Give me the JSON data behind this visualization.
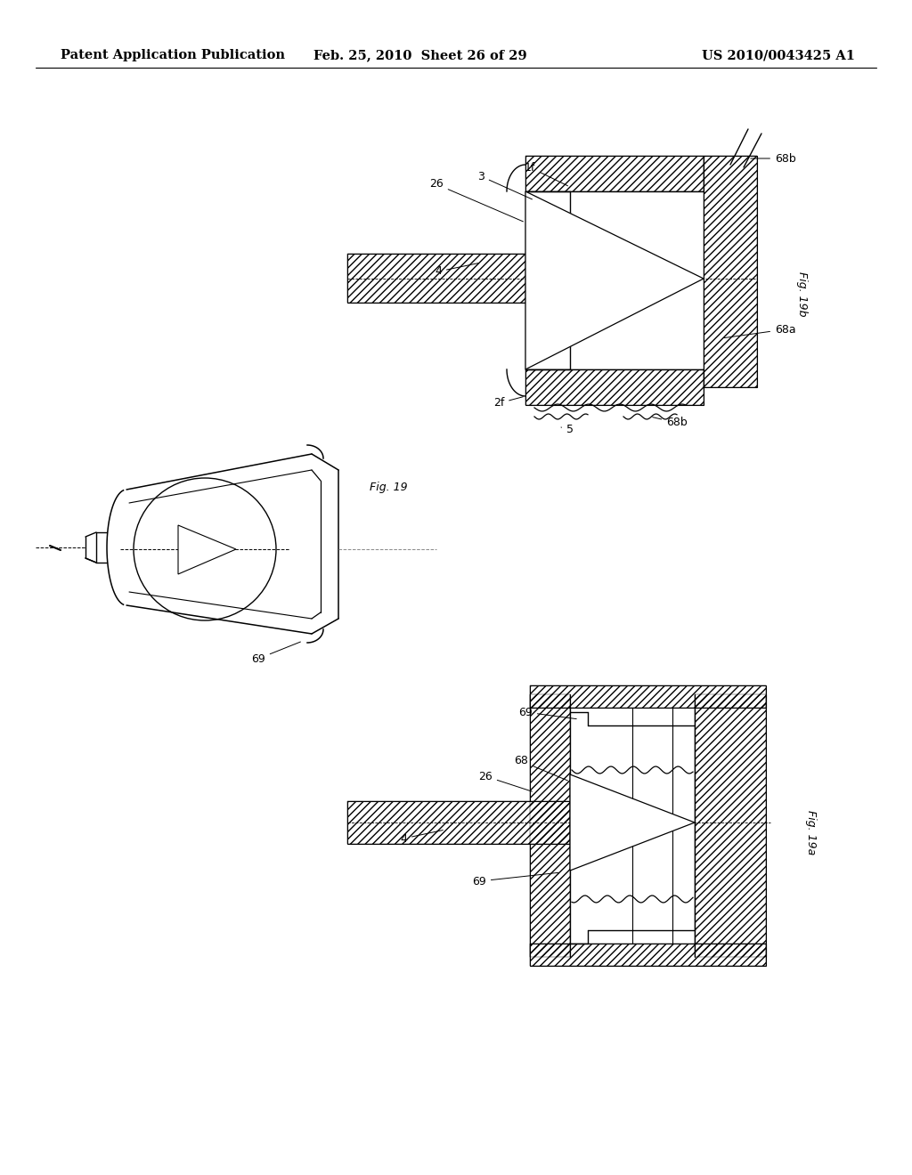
{
  "background_color": "#ffffff",
  "header": {
    "left": "Patent Application Publication",
    "center": "Feb. 25, 2010  Sheet 26 of 29",
    "right": "US 2010/0043425 A1",
    "fontsize": 10.5
  }
}
